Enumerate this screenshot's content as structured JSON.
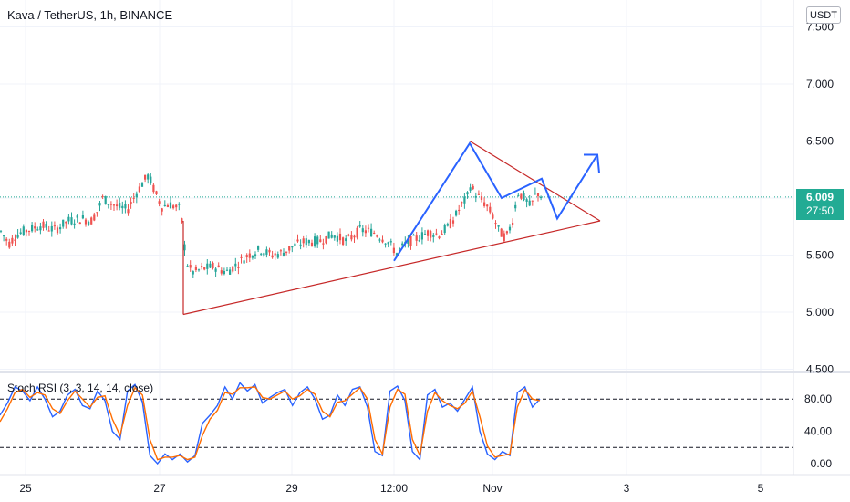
{
  "header": {
    "title": "Kava / TetherUS, 1h, BINANCE",
    "currency": "USDT"
  },
  "price_badge": {
    "price": "6.009",
    "countdown": "27:50"
  },
  "indicator": {
    "label": "Stoch RSI (3, 3, 14, 14, close)"
  },
  "colors": {
    "bull": "#26a69a",
    "bear": "#ef5350",
    "trend": "#c62828",
    "projection": "#2962ff",
    "stoch_k": "#2962ff",
    "stoch_d": "#ff6d00",
    "current_line": "#22ab94"
  },
  "chart_data": [
    {
      "type": "candlestick",
      "title": "Kava / TetherUS, 1h, BINANCE",
      "x_ticks": [
        "25",
        "27",
        "29",
        "12:00",
        "Nov",
        "3",
        "5"
      ],
      "y_ticks": [
        "7.500",
        "7.000",
        "6.500",
        "6.000",
        "5.500",
        "5.000",
        "4.500"
      ],
      "ylim": [
        4.5,
        7.6
      ],
      "grid": true,
      "current_price": 6.009,
      "price_path": [
        [
          0,
          5.72
        ],
        [
          10,
          5.6
        ],
        [
          18,
          5.68
        ],
        [
          30,
          5.72
        ],
        [
          45,
          5.76
        ],
        [
          60,
          5.72
        ],
        [
          75,
          5.8
        ],
        [
          90,
          5.82
        ],
        [
          100,
          5.8
        ],
        [
          108,
          5.9
        ],
        [
          112,
          6.0
        ],
        [
          120,
          5.96
        ],
        [
          130,
          5.92
        ],
        [
          140,
          5.9
        ],
        [
          150,
          6.05
        ],
        [
          158,
          6.15
        ],
        [
          163,
          6.2
        ],
        [
          170,
          6.05
        ],
        [
          178,
          5.92
        ],
        [
          185,
          5.95
        ],
        [
          193,
          5.92
        ],
        [
          198,
          5.9
        ],
        [
          202,
          5.6
        ],
        [
          206,
          5.4
        ],
        [
          212,
          5.35
        ],
        [
          222,
          5.38
        ],
        [
          235,
          5.4
        ],
        [
          248,
          5.35
        ],
        [
          260,
          5.42
        ],
        [
          272,
          5.5
        ],
        [
          285,
          5.55
        ],
        [
          298,
          5.5
        ],
        [
          310,
          5.52
        ],
        [
          322,
          5.58
        ],
        [
          335,
          5.62
        ],
        [
          350,
          5.62
        ],
        [
          365,
          5.68
        ],
        [
          380,
          5.62
        ],
        [
          395,
          5.72
        ],
        [
          410,
          5.7
        ],
        [
          425,
          5.62
        ],
        [
          435,
          5.52
        ],
        [
          445,
          5.6
        ],
        [
          458,
          5.65
        ],
        [
          470,
          5.7
        ],
        [
          482,
          5.68
        ],
        [
          492,
          5.75
        ],
        [
          500,
          5.85
        ],
        [
          507,
          5.95
        ],
        [
          512,
          6.0
        ],
        [
          516,
          6.12
        ],
        [
          520,
          6.05
        ],
        [
          526,
          6.0
        ],
        [
          532,
          5.95
        ],
        [
          540,
          5.85
        ],
        [
          548,
          5.7
        ],
        [
          555,
          5.65
        ],
        [
          562,
          5.8
        ],
        [
          568,
          6.05
        ],
        [
          575,
          6.0
        ],
        [
          582,
          5.92
        ],
        [
          588,
          6.05
        ],
        [
          594,
          6.02
        ]
      ],
      "drawings": {
        "triangle": [
          [
            5.0,
            6.5
          ],
          "apex 5.82"
        ],
        "projection": [
          5.45,
          6.48,
          6.0,
          6.17,
          5.82,
          6.38
        ]
      }
    },
    {
      "type": "line",
      "title": "Stoch RSI (3, 3, 14, 14, close)",
      "y_ticks": [
        "80.00",
        "40.00",
        "0.00"
      ],
      "ylim": [
        0,
        100
      ],
      "bands": [
        80,
        20
      ],
      "series": [
        {
          "values": [
            60,
            75,
            95,
            90,
            78,
            95,
            80,
            58,
            65,
            85,
            92,
            72,
            68,
            90,
            78,
            40,
            30,
            90,
            98,
            76,
            10,
            0,
            12,
            5,
            12,
            2,
            10,
            50,
            60,
            72,
            95,
            80,
            100,
            90,
            98,
            75,
            82,
            88,
            92,
            72,
            88,
            95,
            80,
            55,
            60,
            85,
            72,
            92,
            95,
            70,
            15,
            10,
            90,
            96,
            78,
            15,
            5,
            85,
            92,
            70,
            75,
            65,
            80,
            95,
            40,
            12,
            5,
            15,
            10,
            88,
            95,
            70,
            80
          ]
        },
        {
          "values": [
            52,
            68,
            88,
            92,
            82,
            88,
            85,
            68,
            62,
            78,
            90,
            80,
            70,
            82,
            84,
            55,
            35,
            72,
            94,
            85,
            30,
            5,
            8,
            8,
            10,
            5,
            8,
            35,
            55,
            66,
            88,
            86,
            94,
            94,
            95,
            82,
            80,
            85,
            90,
            80,
            84,
            92,
            86,
            65,
            58,
            76,
            78,
            86,
            94,
            80,
            30,
            12,
            70,
            92,
            86,
            30,
            10,
            65,
            88,
            78,
            72,
            68,
            75,
            90,
            58,
            22,
            8,
            10,
            12,
            70,
            92,
            80,
            78
          ]
        }
      ]
    }
  ]
}
